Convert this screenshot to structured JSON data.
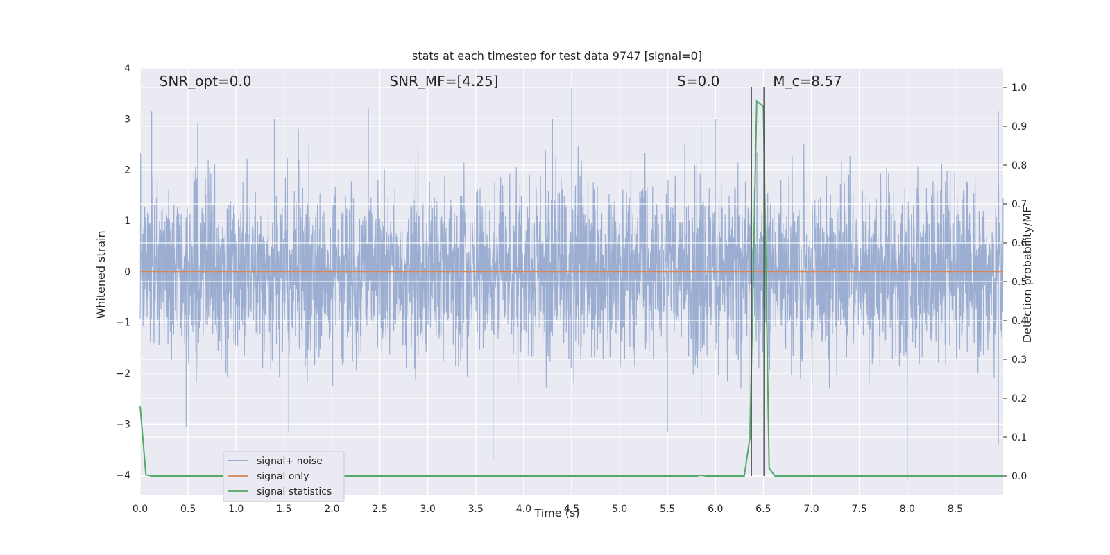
{
  "chart_data": {
    "type": "line",
    "title": "stats at each timestep for test data 9747 [signal=0]",
    "xlabel": "Time (s)",
    "ylabel": "Whitened strain",
    "y2label": "Detection probability/MF",
    "xlim": [
      0,
      9.0
    ],
    "ylim": [
      -4.4,
      4.0
    ],
    "y2lim": [
      -0.05,
      1.05
    ],
    "x_ticks": [
      "0.0",
      "0.5",
      "1.0",
      "1.5",
      "2.0",
      "2.5",
      "3.0",
      "3.5",
      "4.0",
      "4.5",
      "5.0",
      "5.5",
      "6.0",
      "6.5",
      "7.0",
      "7.5",
      "8.0",
      "8.5"
    ],
    "y_ticks": [
      "4",
      "3",
      "2",
      "1",
      "0",
      "−1",
      "−2",
      "−3",
      "−4"
    ],
    "y2_ticks": [
      "1.0",
      "0.9",
      "0.8",
      "0.7",
      "0.6",
      "0.5",
      "0.4",
      "0.3",
      "0.2",
      "0.1",
      "0.0"
    ],
    "grid": true,
    "legend_position": "lower-left",
    "colors": {
      "signal_noise": "#4c72b0",
      "signal_only": "#dd8452",
      "statistics": "#55a868",
      "vline": "#555555",
      "background": "#eaeaf2"
    },
    "annotations": [
      {
        "label": "SNR_opt=0.0",
        "x": 0.2
      },
      {
        "label": "SNR_MF=[4.25]",
        "x": 2.6
      },
      {
        "label": "S=0.0",
        "x": 5.6
      },
      {
        "label": "M_c=8.57",
        "x": 6.6
      }
    ],
    "vertical_lines": [
      {
        "x": 6.375,
        "y2": [
          0.0,
          1.0
        ]
      },
      {
        "x": 6.505,
        "y2": [
          0.0,
          1.0
        ]
      }
    ],
    "series": [
      {
        "name": "signal+ noise",
        "kind": "noise",
        "amplitude_typical": 1.9,
        "spikes_up": [
          [
            0.12,
            3.15
          ],
          [
            0.6,
            2.9
          ],
          [
            1.4,
            3.0
          ],
          [
            1.65,
            2.8
          ],
          [
            2.38,
            3.2
          ],
          [
            4.3,
            3.0
          ],
          [
            4.5,
            3.6
          ],
          [
            5.85,
            2.9
          ],
          [
            6.0,
            3.0
          ],
          [
            8.95,
            3.15
          ]
        ],
        "spikes_down": [
          [
            0.48,
            -3.05
          ],
          [
            1.55,
            -3.15
          ],
          [
            3.68,
            -3.7
          ],
          [
            5.5,
            -3.15
          ],
          [
            5.85,
            -2.9
          ],
          [
            6.35,
            -3.2
          ],
          [
            8.0,
            -4.1
          ],
          [
            8.95,
            -3.4
          ]
        ]
      },
      {
        "name": "signal only",
        "x": [
          0.0,
          9.0
        ],
        "y": [
          0.0,
          0.0
        ]
      },
      {
        "name": "signal statistics",
        "x": [
          0.0,
          0.06,
          0.12,
          5.8,
          5.85,
          5.9,
          6.3,
          6.36,
          6.43,
          6.5,
          6.56,
          6.62,
          6.66,
          9.0
        ],
        "y2": [
          0.18,
          0.003,
          0.0,
          0.0,
          0.002,
          0.0,
          0.0,
          0.1,
          0.965,
          0.95,
          0.02,
          0.0,
          0.0,
          0.0
        ]
      }
    ]
  }
}
